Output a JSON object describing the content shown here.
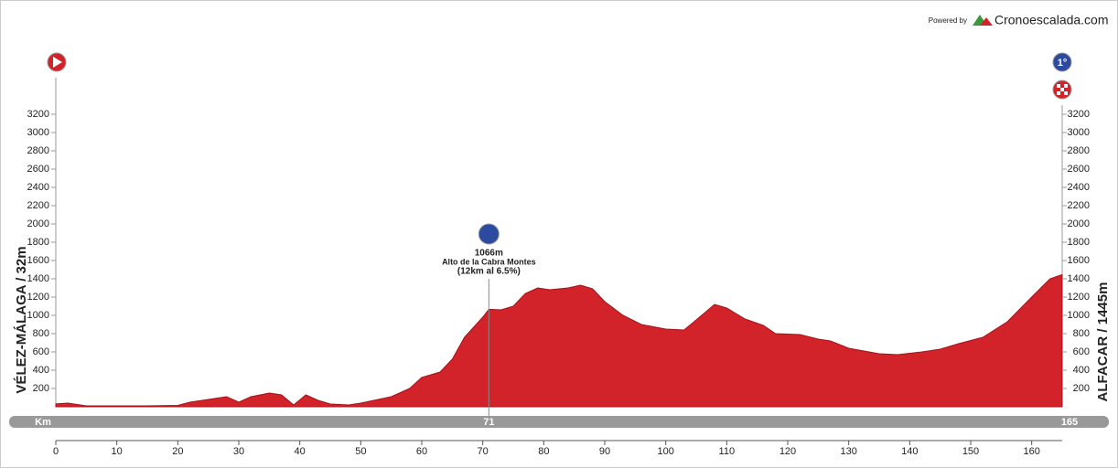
{
  "chart_data": {
    "type": "area",
    "branding": {
      "prefix": "Powered by",
      "name": "Cronoescalada.com"
    },
    "start_label": "VÉLEZ-MÁLAGA / 32m",
    "finish_label": "ALFACAR / 1445m",
    "distance_unit": "Km",
    "distance_total": 165,
    "color": "#d2232a",
    "x": [
      0,
      2,
      5,
      10,
      15,
      20,
      22,
      25,
      28,
      30,
      32,
      35,
      37,
      39,
      41,
      43,
      45,
      48,
      50,
      55,
      58,
      60,
      63,
      65,
      67,
      70,
      71,
      73,
      75,
      77,
      79,
      81,
      84,
      86,
      88,
      90,
      93,
      96,
      100,
      103,
      105,
      108,
      110,
      113,
      116,
      118,
      122,
      125,
      127,
      130,
      135,
      138,
      142,
      145,
      148,
      152,
      156,
      160,
      163,
      165
    ],
    "values": [
      32,
      40,
      10,
      10,
      10,
      15,
      50,
      80,
      110,
      50,
      110,
      150,
      130,
      20,
      130,
      70,
      30,
      20,
      40,
      110,
      200,
      320,
      380,
      520,
      760,
      980,
      1066,
      1060,
      1100,
      1240,
      1300,
      1280,
      1300,
      1330,
      1290,
      1150,
      1000,
      900,
      850,
      840,
      950,
      1120,
      1080,
      960,
      890,
      800,
      790,
      740,
      720,
      640,
      580,
      570,
      600,
      630,
      690,
      760,
      930,
      1200,
      1400,
      1445
    ],
    "climbs": [
      {
        "km": 71,
        "elevation": 1066,
        "label": "1066m",
        "name": "Alto de la Cabra Montes",
        "detail": "(12km al 6.5%)"
      }
    ],
    "xlim": [
      0,
      165
    ],
    "xticks": [
      0,
      10,
      20,
      30,
      40,
      50,
      60,
      70,
      80,
      90,
      100,
      110,
      120,
      130,
      140,
      150,
      160
    ],
    "ylim": [
      0,
      3600
    ],
    "yticks": [
      200,
      400,
      600,
      800,
      1000,
      1200,
      1400,
      1600,
      1800,
      2000,
      2200,
      2400,
      2600,
      2800,
      3000,
      3200
    ]
  }
}
